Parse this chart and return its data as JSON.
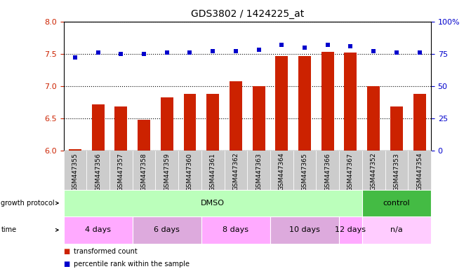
{
  "title": "GDS3802 / 1424225_at",
  "samples": [
    "GSM447355",
    "GSM447356",
    "GSM447357",
    "GSM447358",
    "GSM447359",
    "GSM447360",
    "GSM447361",
    "GSM447362",
    "GSM447363",
    "GSM447364",
    "GSM447365",
    "GSM447366",
    "GSM447367",
    "GSM447352",
    "GSM447353",
    "GSM447354"
  ],
  "bar_values": [
    6.02,
    6.72,
    6.68,
    6.48,
    6.83,
    6.88,
    6.88,
    7.07,
    7.0,
    7.46,
    7.47,
    7.53,
    7.52,
    7.0,
    6.68,
    6.88
  ],
  "dot_values": [
    72,
    76,
    75,
    75,
    76,
    76,
    77,
    77,
    78,
    82,
    80,
    82,
    81,
    77,
    76,
    76
  ],
  "ylim_left": [
    6,
    8
  ],
  "ylim_right": [
    0,
    100
  ],
  "yticks_left": [
    6.0,
    6.5,
    7.0,
    7.5,
    8.0
  ],
  "yticks_right": [
    0,
    25,
    50,
    75,
    100
  ],
  "ytick_labels_right": [
    "0",
    "25",
    "50",
    "75",
    "100%"
  ],
  "bar_color": "#cc2200",
  "dot_color": "#0000cc",
  "protocol_groups": [
    {
      "label": "DMSO",
      "start": 0,
      "end": 12,
      "color": "#bbffbb"
    },
    {
      "label": "control",
      "start": 13,
      "end": 15,
      "color": "#44bb44"
    }
  ],
  "time_groups": [
    {
      "label": "4 days",
      "start": 0,
      "end": 2,
      "color": "#ffaaff"
    },
    {
      "label": "6 days",
      "start": 3,
      "end": 5,
      "color": "#ddaadd"
    },
    {
      "label": "8 days",
      "start": 6,
      "end": 8,
      "color": "#ffaaff"
    },
    {
      "label": "10 days",
      "start": 9,
      "end": 11,
      "color": "#ddaadd"
    },
    {
      "label": "12 days",
      "start": 12,
      "end": 12,
      "color": "#ffaaff"
    },
    {
      "label": "n/a",
      "start": 13,
      "end": 15,
      "color": "#ffccff"
    }
  ],
  "tick_label_color_left": "#cc2200",
  "tick_label_color_right": "#0000cc",
  "sample_box_color": "#cccccc"
}
